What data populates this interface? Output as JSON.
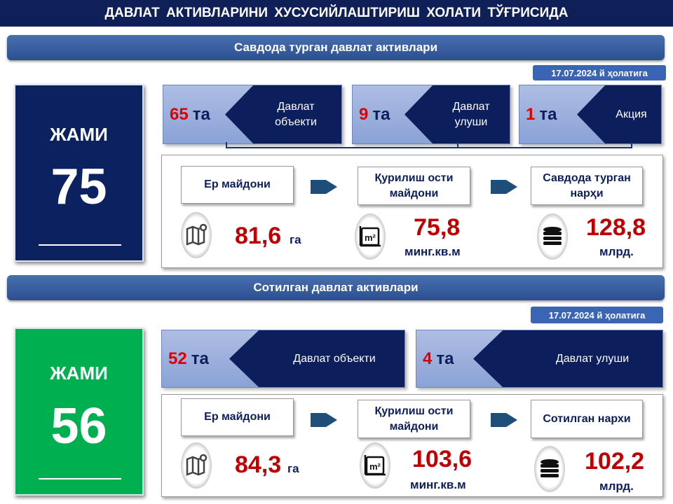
{
  "title": "ДАВЛАТ АКТИВЛАРИНИ ХУСУСИЙЛАШТИРИШ ХОЛАТИ ТЎҒРИСИДА",
  "colors": {
    "navy": "#0c1e5b",
    "green": "#00b050",
    "red": "#e00000",
    "value_red": "#c00000"
  },
  "on_sale": {
    "header": "Савдода турган давлат активлари",
    "date": "17.07.2024 й ҳолатига",
    "total_label": "ЖАМИ",
    "total": "75",
    "cards": [
      {
        "count": "65",
        "unit": "та",
        "label": "Давлат объекти"
      },
      {
        "count": "9",
        "unit": "та",
        "label": "Давлат улуши"
      },
      {
        "count": "1",
        "unit": "та",
        "label": "Акция"
      }
    ],
    "metrics": [
      {
        "label": "Ер майдони",
        "value": "81,6",
        "unit": "га",
        "icon": "map-pin-icon"
      },
      {
        "label": "Қурилиш ости майдони",
        "value": "75,8",
        "unit": "минг.кв.м",
        "icon": "square-meter-icon"
      },
      {
        "label": "Савдода турган нарҳи",
        "value": "128,8",
        "unit": "млрд.",
        "icon": "coins-icon"
      }
    ]
  },
  "sold": {
    "header": "Сотилган давлат активлари",
    "date": "17.07.2024 й ҳолатига",
    "total_label": "ЖАМИ",
    "total": "56",
    "cards": [
      {
        "count": "52",
        "unit": "та",
        "label": "Давлат объекти"
      },
      {
        "count": "4",
        "unit": "та",
        "label": "Давлат улуши"
      }
    ],
    "metrics": [
      {
        "label": "Ер майдони",
        "value": "84,3",
        "unit": "га",
        "icon": "map-pin-icon"
      },
      {
        "label": "Қурилиш ости майдони",
        "value": "103,6",
        "unit": "минг.кв.м",
        "icon": "square-meter-icon"
      },
      {
        "label": "Сотилган нархи",
        "value": "102,2",
        "unit": "млрд.",
        "icon": "coins-icon"
      }
    ]
  }
}
